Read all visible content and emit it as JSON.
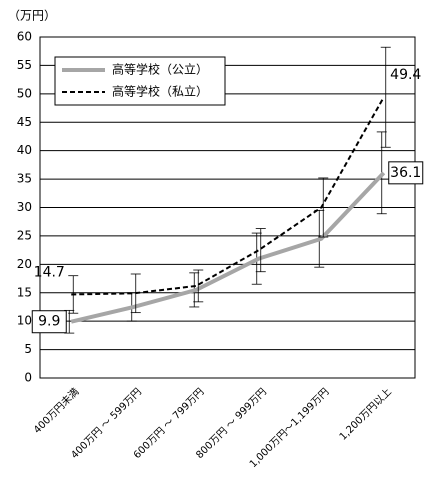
{
  "chart_data": {
    "type": "line",
    "y_label": "（万円）",
    "categories": [
      "400万円未満",
      "400万円 ～ 599万円",
      "600万円 ～ 799万円",
      "800万円 ～ 999万円",
      "1,000万円～1,199万円",
      "1,200万円以上"
    ],
    "series": [
      {
        "name": "高等学校（公立）",
        "color": "#a6a6a6",
        "style": "solid",
        "values": [
          9.9,
          12.5,
          15.5,
          21,
          24.5,
          36.1
        ],
        "errors": [
          2,
          2.5,
          3,
          4.5,
          5,
          7.2
        ]
      },
      {
        "name": "高等学校（私立）",
        "color": "#000000",
        "style": "dashed",
        "values": [
          14.7,
          14.9,
          16.2,
          22.5,
          30,
          49.4
        ],
        "errors": [
          3.3,
          3.4,
          2.8,
          3.8,
          5.2,
          8.8
        ]
      }
    ],
    "ylim": [
      0,
      60
    ],
    "yticks": [
      0,
      5,
      10,
      15,
      20,
      25,
      30,
      35,
      40,
      45,
      50,
      55,
      60
    ],
    "grid": true
  }
}
